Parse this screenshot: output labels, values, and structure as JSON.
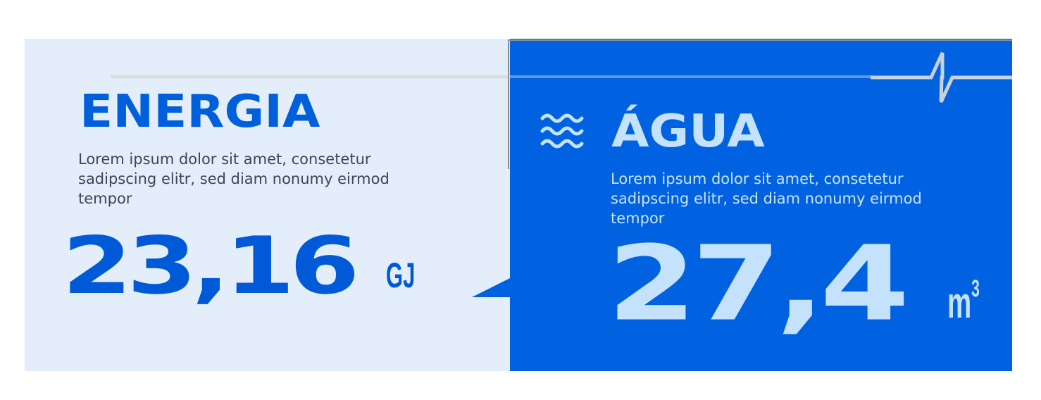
{
  "energy": {
    "title": "ENERGIA",
    "description": "Lorem ipsum dolor sit amet, consetetur sadipscing elitr, sed diam nonumy eirmod tempor",
    "value": "23,16",
    "unit": "GJ"
  },
  "water": {
    "title": "ÁGUA",
    "description": "Lorem ipsum dolor sit amet, consetetur sadipscing elitr, sed diam nonumy eirmod tempor",
    "value": "27,4",
    "unit": "m",
    "unit_superscript": "3",
    "icon": "water-waves-icon"
  },
  "colors": {
    "accent_blue": "#0062e0",
    "light_panel": "#e3eefa",
    "light_text": "#c4e2fb",
    "body_text": "#3f4553"
  }
}
